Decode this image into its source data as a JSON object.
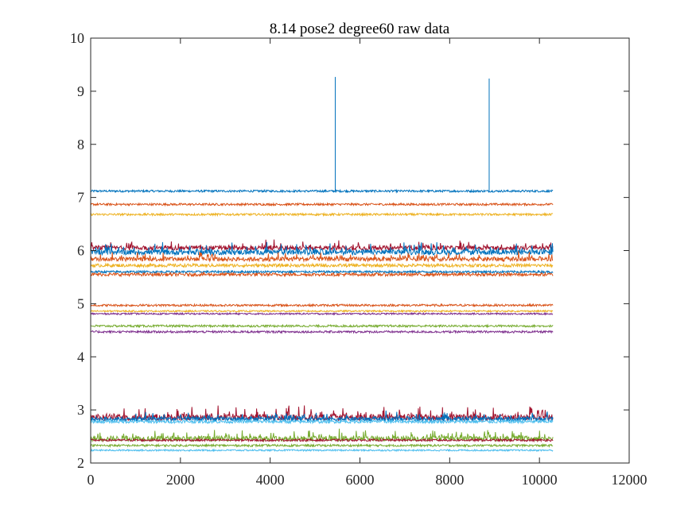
{
  "chart_data": {
    "type": "line",
    "title": "8.14 pose2  degree60 raw data",
    "xlabel": "",
    "ylabel": "",
    "xlim": [
      0,
      12000
    ],
    "ylim": [
      2,
      10
    ],
    "x_ticks": [
      0,
      2000,
      4000,
      6000,
      8000,
      10000,
      12000
    ],
    "y_ticks": [
      2,
      3,
      4,
      5,
      6,
      7,
      8,
      9,
      10
    ],
    "x_range": [
      1,
      10300
    ],
    "grid": false,
    "legend": "none",
    "series": [
      {
        "color": "#0072BD",
        "baseline": 7.12,
        "noise": 0.02,
        "spikes": [
          {
            "x": 5450,
            "y": 9.27
          },
          {
            "x": 8880,
            "y": 9.24
          }
        ]
      },
      {
        "color": "#D95319",
        "baseline": 6.87,
        "noise": 0.02
      },
      {
        "color": "#EDB120",
        "baseline": 6.68,
        "noise": 0.02
      },
      {
        "color": "#A2142F",
        "baseline": 6.05,
        "noise": 0.04
      },
      {
        "color": "#0072BD",
        "baseline": 5.97,
        "noise": 0.05
      },
      {
        "color": "#D95319",
        "baseline": 5.84,
        "noise": 0.04
      },
      {
        "color": "#EDB120",
        "baseline": 5.72,
        "noise": 0.03
      },
      {
        "color": "#0072BD",
        "baseline": 5.6,
        "noise": 0.02
      },
      {
        "color": "#D95319",
        "baseline": 5.55,
        "noise": 0.03
      },
      {
        "color": "#D95319",
        "baseline": 4.97,
        "noise": 0.02
      },
      {
        "color": "#EDB120",
        "baseline": 4.86,
        "noise": 0.015
      },
      {
        "color": "#7E2F8E",
        "baseline": 4.81,
        "noise": 0.015
      },
      {
        "color": "#77AC30",
        "baseline": 4.58,
        "noise": 0.02
      },
      {
        "color": "#7E2F8E",
        "baseline": 4.47,
        "noise": 0.02
      },
      {
        "color": "#A2142F",
        "baseline": 2.86,
        "noise": 0.06
      },
      {
        "color": "#0072BD",
        "baseline": 2.83,
        "noise": 0.04
      },
      {
        "color": "#4DBEEE",
        "baseline": 2.78,
        "noise": 0.03
      },
      {
        "color": "#77AC30",
        "baseline": 2.46,
        "noise": 0.05
      },
      {
        "color": "#A2142F",
        "baseline": 2.43,
        "noise": 0.02
      },
      {
        "color": "#77AC30",
        "baseline": 2.33,
        "noise": 0.02
      },
      {
        "color": "#4DBEEE",
        "baseline": 2.24,
        "noise": 0.015
      }
    ]
  }
}
